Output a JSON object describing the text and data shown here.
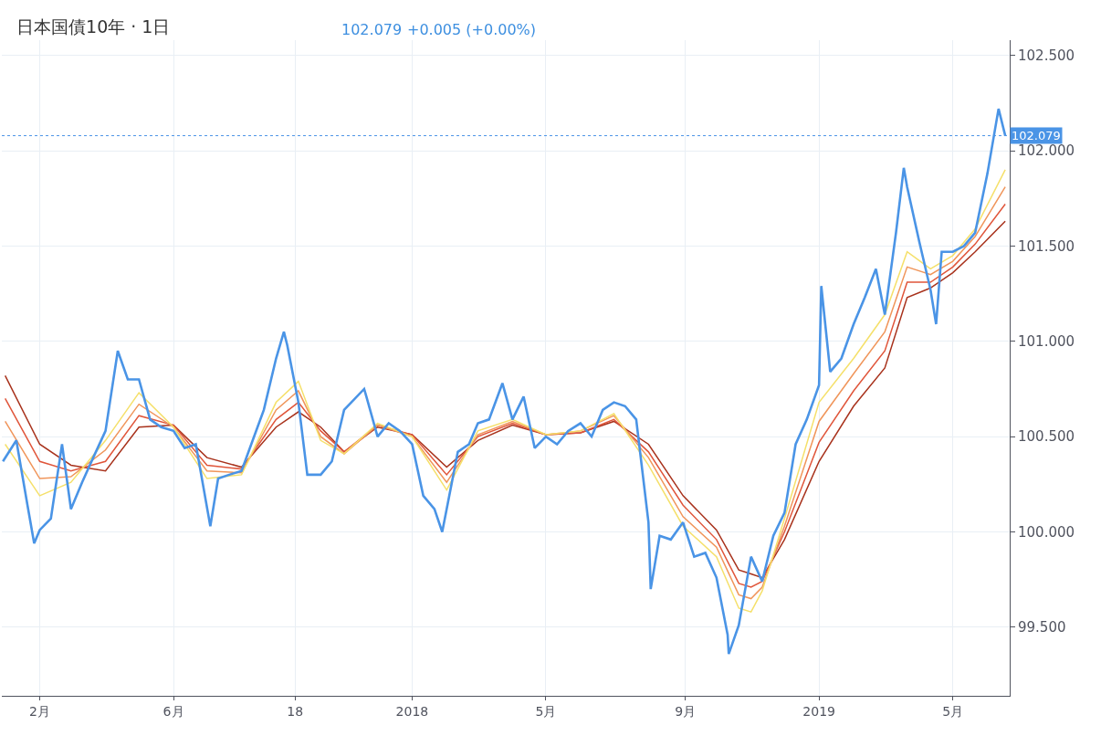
{
  "chart_data": {
    "type": "line",
    "title": "日本国債10年 · 1日",
    "annotations": [
      "102.079",
      "+0.005 (+0.00%)"
    ],
    "xlim": [
      "2016-12-29",
      "2019-06-21"
    ],
    "xticks": [
      {
        "value": "2017-02-01",
        "label": "2月"
      },
      {
        "value": "2017-06-01",
        "label": "6月"
      },
      {
        "value": "2017-09-18",
        "label": "18"
      },
      {
        "value": "2018-01-01",
        "label": "2018"
      },
      {
        "value": "2018-05-01",
        "label": "5月"
      },
      {
        "value": "2018-09-03",
        "label": "9月"
      },
      {
        "value": "2019-01-01",
        "label": "2019"
      },
      {
        "value": "2019-05-01",
        "label": "5月"
      }
    ],
    "ylim": [
      99.14,
      102.58
    ],
    "yticks": [
      {
        "value": 99.5,
        "label": "99.500"
      },
      {
        "value": 100.0,
        "label": "100.000"
      },
      {
        "value": 100.5,
        "label": "100.500"
      },
      {
        "value": 101.0,
        "label": "101.000"
      },
      {
        "value": 101.5,
        "label": "101.500"
      },
      {
        "value": 102.0,
        "label": "102.000"
      },
      {
        "value": 102.5,
        "label": "102.500"
      }
    ],
    "grid": true,
    "ref_lines": [
      {
        "axis": "y",
        "value": 102.079,
        "label": "102.079",
        "color": "#4a94e6",
        "line_style": "dotted"
      }
    ],
    "series": [
      {
        "color": "#a8321c",
        "x": [
          "2017-01-01",
          "2017-02-01",
          "2017-03-01",
          "2017-04-01",
          "2017-05-01",
          "2017-06-01",
          "2017-07-01",
          "2017-08-01",
          "2017-09-01",
          "2017-09-21",
          "2017-10-11",
          "2017-11-01",
          "2017-12-01",
          "2018-01-01",
          "2018-02-01",
          "2018-03-01",
          "2018-04-01",
          "2018-05-01",
          "2018-06-01",
          "2018-07-01",
          "2018-08-01",
          "2018-09-01",
          "2018-10-01",
          "2018-10-21",
          "2018-11-01",
          "2018-11-11",
          "2018-12-01",
          "2019-01-01",
          "2019-02-01",
          "2019-03-01",
          "2019-03-21",
          "2019-04-11",
          "2019-05-01",
          "2019-05-21",
          "2019-06-17"
        ],
        "values": [
          100.82,
          100.46,
          100.35,
          100.32,
          100.55,
          100.56,
          100.39,
          100.34,
          100.55,
          100.63,
          100.55,
          100.42,
          100.55,
          100.51,
          100.34,
          100.48,
          100.56,
          100.51,
          100.52,
          100.58,
          100.46,
          100.19,
          100.01,
          99.8,
          99.78,
          99.76,
          99.96,
          100.37,
          100.66,
          100.86,
          101.23,
          101.28,
          101.36,
          101.47,
          101.63
        ]
      },
      {
        "color": "#e0553a",
        "x": [
          "2017-01-01",
          "2017-02-01",
          "2017-03-01",
          "2017-04-01",
          "2017-05-01",
          "2017-06-01",
          "2017-07-01",
          "2017-08-01",
          "2017-09-01",
          "2017-09-21",
          "2017-10-11",
          "2017-11-01",
          "2017-12-01",
          "2018-01-01",
          "2018-02-01",
          "2018-03-01",
          "2018-04-01",
          "2018-05-01",
          "2018-06-01",
          "2018-07-01",
          "2018-08-01",
          "2018-09-01",
          "2018-10-01",
          "2018-10-21",
          "2018-11-01",
          "2018-11-11",
          "2018-12-01",
          "2019-01-01",
          "2019-02-01",
          "2019-03-01",
          "2019-03-21",
          "2019-04-11",
          "2019-05-01",
          "2019-05-21",
          "2019-06-17"
        ],
        "values": [
          100.7,
          100.37,
          100.32,
          100.37,
          100.61,
          100.56,
          100.35,
          100.33,
          100.59,
          100.68,
          100.53,
          100.42,
          100.56,
          100.51,
          100.3,
          100.5,
          100.57,
          100.51,
          100.52,
          100.59,
          100.42,
          100.14,
          99.96,
          99.73,
          99.71,
          99.74,
          100.0,
          100.47,
          100.74,
          100.95,
          101.31,
          101.31,
          101.39,
          101.51,
          101.72
        ]
      },
      {
        "color": "#f0955a",
        "x": [
          "2017-01-01",
          "2017-02-01",
          "2017-03-01",
          "2017-04-01",
          "2017-05-01",
          "2017-06-01",
          "2017-07-01",
          "2017-08-01",
          "2017-09-01",
          "2017-09-21",
          "2017-10-11",
          "2017-11-01",
          "2017-12-01",
          "2018-01-01",
          "2018-02-01",
          "2018-03-01",
          "2018-04-01",
          "2018-05-01",
          "2018-06-01",
          "2018-07-01",
          "2018-08-01",
          "2018-09-01",
          "2018-10-01",
          "2018-10-21",
          "2018-11-01",
          "2018-11-11",
          "2018-12-01",
          "2019-01-01",
          "2019-02-01",
          "2019-03-01",
          "2019-03-21",
          "2019-04-11",
          "2019-05-01",
          "2019-05-21",
          "2019-06-17"
        ],
        "values": [
          100.58,
          100.28,
          100.29,
          100.43,
          100.67,
          100.55,
          100.32,
          100.31,
          100.64,
          100.74,
          100.5,
          100.41,
          100.56,
          100.5,
          100.26,
          100.51,
          100.58,
          100.51,
          100.53,
          100.61,
          100.39,
          100.08,
          99.92,
          99.67,
          99.65,
          99.71,
          100.03,
          100.58,
          100.83,
          101.05,
          101.39,
          101.35,
          101.42,
          101.55,
          101.81
        ]
      },
      {
        "color": "#f5e06a",
        "x": [
          "2017-01-01",
          "2017-02-01",
          "2017-03-01",
          "2017-04-01",
          "2017-05-01",
          "2017-06-01",
          "2017-07-01",
          "2017-08-01",
          "2017-09-01",
          "2017-09-21",
          "2017-10-11",
          "2017-11-01",
          "2017-12-01",
          "2018-01-01",
          "2018-02-01",
          "2018-03-01",
          "2018-04-01",
          "2018-05-01",
          "2018-06-01",
          "2018-07-01",
          "2018-08-01",
          "2018-09-01",
          "2018-10-01",
          "2018-10-21",
          "2018-11-01",
          "2018-11-11",
          "2018-12-01",
          "2019-01-01",
          "2019-02-01",
          "2019-03-01",
          "2019-03-21",
          "2019-04-11",
          "2019-05-01",
          "2019-05-21",
          "2019-06-17"
        ],
        "values": [
          100.46,
          100.19,
          100.26,
          100.48,
          100.73,
          100.55,
          100.28,
          100.3,
          100.68,
          100.79,
          100.48,
          100.41,
          100.57,
          100.5,
          100.22,
          100.53,
          100.59,
          100.51,
          100.53,
          100.62,
          100.35,
          100.03,
          99.87,
          99.6,
          99.58,
          99.69,
          100.07,
          100.68,
          100.91,
          101.14,
          101.47,
          101.38,
          101.45,
          101.59,
          101.9
        ]
      },
      {
        "color": "#4a94e6",
        "x": [
          "2016-12-30",
          "2017-01-11",
          "2017-01-21",
          "2017-01-27",
          "2017-02-01",
          "2017-02-11",
          "2017-02-21",
          "2017-03-01",
          "2017-03-11",
          "2017-03-21",
          "2017-04-01",
          "2017-04-12",
          "2017-04-21",
          "2017-05-01",
          "2017-05-11",
          "2017-05-21",
          "2017-06-01",
          "2017-06-11",
          "2017-06-21",
          "2017-07-04",
          "2017-07-11",
          "2017-07-21",
          "2017-08-01",
          "2017-08-11",
          "2017-08-21",
          "2017-09-01",
          "2017-09-08",
          "2017-09-11",
          "2017-09-21",
          "2017-09-29",
          "2017-10-11",
          "2017-10-21",
          "2017-11-01",
          "2017-11-19",
          "2017-11-21",
          "2017-12-01",
          "2017-12-11",
          "2017-12-21",
          "2018-01-01",
          "2018-01-11",
          "2018-01-21",
          "2018-01-28",
          "2018-02-01",
          "2018-02-11",
          "2018-02-21",
          "2018-03-01",
          "2018-03-11",
          "2018-03-23",
          "2018-04-01",
          "2018-04-11",
          "2018-04-21",
          "2018-05-01",
          "2018-05-11",
          "2018-05-21",
          "2018-06-01",
          "2018-06-11",
          "2018-06-21",
          "2018-07-01",
          "2018-07-11",
          "2018-07-21",
          "2018-08-01",
          "2018-08-03",
          "2018-08-11",
          "2018-08-21",
          "2018-09-01",
          "2018-09-11",
          "2018-09-21",
          "2018-10-01",
          "2018-10-11",
          "2018-10-12",
          "2018-10-21",
          "2018-11-01",
          "2018-11-11",
          "2018-11-21",
          "2018-12-01",
          "2018-12-11",
          "2018-12-21",
          "2019-01-01",
          "2019-01-03",
          "2019-01-11",
          "2019-01-21",
          "2019-02-01",
          "2019-02-11",
          "2019-02-21",
          "2019-03-01",
          "2019-03-11",
          "2019-03-18",
          "2019-03-21",
          "2019-04-01",
          "2019-04-11",
          "2019-04-16",
          "2019-04-21",
          "2019-05-01",
          "2019-05-11",
          "2019-05-21",
          "2019-06-01",
          "2019-06-11",
          "2019-06-17"
        ],
        "values": [
          100.37,
          100.48,
          100.14,
          99.94,
          100.01,
          100.07,
          100.46,
          100.12,
          100.26,
          100.39,
          100.53,
          100.95,
          100.8,
          100.8,
          100.59,
          100.55,
          100.53,
          100.44,
          100.46,
          100.03,
          100.28,
          100.3,
          100.32,
          100.48,
          100.64,
          100.91,
          101.05,
          100.98,
          100.68,
          100.3,
          100.3,
          100.37,
          100.64,
          100.75,
          100.71,
          100.5,
          100.57,
          100.53,
          100.46,
          100.19,
          100.12,
          100.0,
          100.12,
          100.42,
          100.46,
          100.57,
          100.59,
          100.78,
          100.59,
          100.71,
          100.44,
          100.5,
          100.46,
          100.53,
          100.57,
          100.5,
          100.64,
          100.68,
          100.66,
          100.59,
          100.05,
          99.7,
          99.98,
          99.96,
          100.05,
          99.87,
          99.89,
          99.76,
          99.46,
          99.36,
          99.51,
          99.87,
          99.74,
          99.98,
          100.1,
          100.46,
          100.59,
          100.77,
          101.29,
          100.84,
          100.91,
          101.09,
          101.23,
          101.38,
          101.14,
          101.57,
          101.91,
          101.81,
          101.52,
          101.27,
          101.09,
          101.47,
          101.47,
          101.5,
          101.57,
          101.88,
          102.22,
          102.079
        ]
      }
    ]
  }
}
